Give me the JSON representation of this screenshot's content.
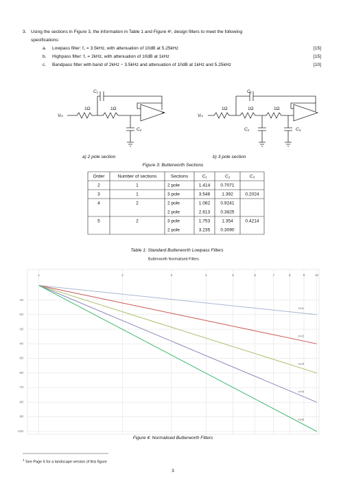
{
  "question": {
    "number": "3.",
    "text": [
      "Using the sections in Figure 3, the information in Table 1 and Figure 4¹, design filters to meet the following",
      "specifications:"
    ],
    "items": [
      {
        "letter": "a.",
        "text": "Lowpass filter: f꜀ = 3.5kHz, with attenuation of 10dB at 5.25kHz",
        "marks": "[15]"
      },
      {
        "letter": "b.",
        "text": "Highpass filter: f꜀ = 2kHz, with attenuation of 10dB at 1kHz",
        "marks": "[15]"
      },
      {
        "letter": "c.",
        "text": "Bandpass filter with band of 2kHz − 3.5kHz and attenuation of 10dB at 1kHz and 5.25kHz",
        "marks": "[10]"
      }
    ]
  },
  "figure3": {
    "circuit_a": {
      "vin": "Vᵢₙ",
      "r1": "1Ω",
      "r2": "1Ω",
      "c1": "C₁",
      "c2": "C₂",
      "caption": "a)  2 pole section"
    },
    "circuit_b": {
      "vin": "Vᵢₙ",
      "r1": "1Ω",
      "r2": "1Ω",
      "r3": "1Ω",
      "c1": "C₁",
      "c2": "C₂",
      "c3": "C₃",
      "caption": "b)  3 pole section"
    },
    "caption": "Figure 3: Butterworth Sections"
  },
  "table1": {
    "header": [
      "Order",
      "Number of sections",
      "Sections",
      "C₁",
      "C₂",
      "C₃"
    ],
    "rows": [
      {
        "order": "2",
        "count": "1",
        "sections": [
          [
            "2 pole",
            "1.414",
            "0.7071"
          ]
        ]
      },
      {
        "order": "3",
        "count": "1",
        "sections": [
          [
            "3 pole",
            "3.546",
            "1.392",
            "0.2024"
          ]
        ]
      },
      {
        "order": "4",
        "count": "2",
        "sections": [
          [
            "2 pole",
            "1.082",
            "0.9241"
          ],
          [
            "2 pole",
            "2.613",
            "0.3825"
          ]
        ]
      },
      {
        "order": "5",
        "count": "2",
        "sections": [
          [
            "3 pole",
            "1.753",
            "1.354",
            "0.4214"
          ],
          [
            "2 pole",
            "3.235",
            "0.3090"
          ]
        ]
      }
    ],
    "caption": "Table 1: Standard Butterworth Lowpass Filters"
  },
  "figure4": {
    "type": "line",
    "title": "Butterworth Normalised Filters",
    "x": [
      1,
      10
    ],
    "xlim": [
      0.91,
      10.2
    ],
    "xticks": [
      1,
      2,
      3,
      4,
      5,
      6,
      7,
      8,
      9,
      10
    ],
    "x_log": true,
    "ylim": [
      -102,
      11
    ],
    "yticks": [
      -10,
      -20,
      -30,
      -40,
      -50,
      -60,
      -70,
      -80,
      -90,
      -100
    ],
    "grid": true,
    "series": [
      {
        "name": "n=1",
        "color": "#a9b6d3",
        "values": [
          0,
          -20
        ]
      },
      {
        "name": "n=2",
        "color": "#c9534f",
        "values": [
          0,
          -40
        ]
      },
      {
        "name": "n=3",
        "color": "#a7bf6a",
        "values": [
          0,
          -60
        ]
      },
      {
        "name": "n=4",
        "color": "#8a86b8",
        "values": [
          0,
          -80
        ]
      },
      {
        "name": "n=5",
        "color": "#3db86f",
        "values": [
          0,
          -100
        ]
      }
    ],
    "caption": "Figure 4: Normalised Butterworth Filters"
  },
  "footnote": {
    "mark": "1",
    "text": "See Page 5 for a landscape version of this figure"
  },
  "page_number": "3"
}
